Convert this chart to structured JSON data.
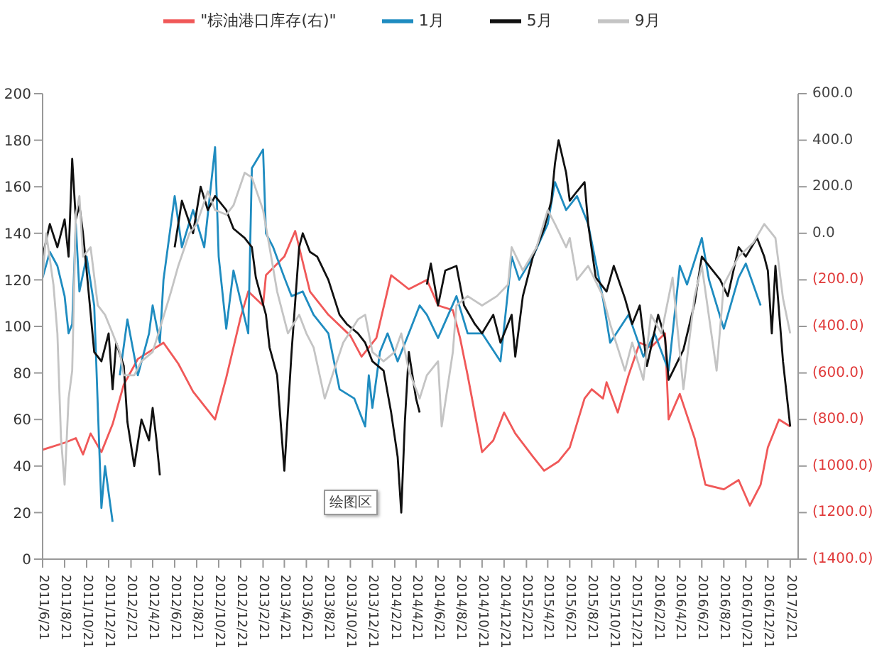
{
  "chart_data": {
    "type": "line",
    "legend": "top",
    "annotations": [
      "绘图区"
    ],
    "xlim": [
      "2011-06-21",
      "2017-03-15"
    ],
    "xticks": [
      {
        "value": "2011-06-21",
        "label": "2011/6/21"
      },
      {
        "value": "2011-08-21",
        "label": "2011/8/21"
      },
      {
        "value": "2011-10-21",
        "label": "2011/10/21"
      },
      {
        "value": "2011-12-21",
        "label": "2011/12/21"
      },
      {
        "value": "2012-02-21",
        "label": "2012/2/21"
      },
      {
        "value": "2012-04-21",
        "label": "2012/4/21"
      },
      {
        "value": "2012-06-21",
        "label": "2012/6/21"
      },
      {
        "value": "2012-08-21",
        "label": "2012/8/21"
      },
      {
        "value": "2012-10-21",
        "label": "2012/10/21"
      },
      {
        "value": "2012-12-21",
        "label": "2012/12/21"
      },
      {
        "value": "2013-02-21",
        "label": "2013/2/21"
      },
      {
        "value": "2013-04-21",
        "label": "2013/4/21"
      },
      {
        "value": "2013-06-21",
        "label": "2013/6/21"
      },
      {
        "value": "2013-08-21",
        "label": "2013/8/21"
      },
      {
        "value": "2013-10-21",
        "label": "2013/10/21"
      },
      {
        "value": "2013-12-21",
        "label": "2013/12/21"
      },
      {
        "value": "2014-02-21",
        "label": "2014/2/21"
      },
      {
        "value": "2014-04-21",
        "label": "2014/4/21"
      },
      {
        "value": "2014-06-21",
        "label": "2014/6/21"
      },
      {
        "value": "2014-08-21",
        "label": "2014/8/21"
      },
      {
        "value": "2014-10-21",
        "label": "2014/10/21"
      },
      {
        "value": "2014-12-21",
        "label": "2014/12/21"
      },
      {
        "value": "2015-02-21",
        "label": "2015/2/21"
      },
      {
        "value": "2015-04-21",
        "label": "2015/4/21"
      },
      {
        "value": "2015-06-21",
        "label": "2015/6/21"
      },
      {
        "value": "2015-08-21",
        "label": "2015/8/21"
      },
      {
        "value": "2015-10-21",
        "label": "2015/10/21"
      },
      {
        "value": "2015-12-21",
        "label": "2015/12/21"
      },
      {
        "value": "2016-02-21",
        "label": "2016/2/21"
      },
      {
        "value": "2016-04-21",
        "label": "2016/4/21"
      },
      {
        "value": "2016-06-21",
        "label": "2016/6/21"
      },
      {
        "value": "2016-08-21",
        "label": "2016/8/21"
      },
      {
        "value": "2016-10-21",
        "label": "2016/10/21"
      },
      {
        "value": "2016-12-21",
        "label": "2016/12/21"
      },
      {
        "value": "2017-02-21",
        "label": "2017/2/21"
      }
    ],
    "ylim": [
      0,
      200
    ],
    "yticks": [
      0,
      20,
      40,
      60,
      80,
      100,
      120,
      140,
      160,
      180,
      200
    ],
    "y2lim": [
      -1400,
      600
    ],
    "y2ticks": [
      {
        "value": -1400,
        "label": "(1400.0)"
      },
      {
        "value": -1200,
        "label": "(1200.0)"
      },
      {
        "value": -1000,
        "label": "(1000.0)"
      },
      {
        "value": -800,
        "label": "(800.0)"
      },
      {
        "value": -600,
        "label": "(600.0)"
      },
      {
        "value": -400,
        "label": "(400.0)"
      },
      {
        "value": -200,
        "label": "(200.0)"
      },
      {
        "value": 0,
        "label": "0.0"
      },
      {
        "value": 200,
        "label": "200.0"
      },
      {
        "value": 400,
        "label": "400.0"
      },
      {
        "value": 600,
        "label": "600.0"
      }
    ],
    "series": [
      {
        "name": "\"棕油港口库存(右)\"",
        "color": "#f05858",
        "axis": "y2",
        "x": [
          "2011-06-21",
          "2011-08-21",
          "2011-09-21",
          "2011-10-11",
          "2011-11-01",
          "2011-12-01",
          "2012-01-01",
          "2012-02-01",
          "2012-03-11",
          "2012-05-21",
          "2012-07-01",
          "2012-08-11",
          "2012-10-11",
          "2012-11-11",
          "2012-12-21",
          "2013-01-11",
          "2013-02-21",
          "2013-03-01",
          "2013-04-21",
          "2013-05-21",
          "2013-07-01",
          "2013-08-21",
          "2013-10-21",
          "2013-11-21",
          "2014-01-01",
          "2014-02-11",
          "2014-04-01",
          "2014-05-21",
          "2014-06-21",
          "2014-08-01",
          "2014-08-21",
          "2014-09-11",
          "2014-10-21",
          "2014-11-21",
          "2014-12-21",
          "2015-01-21",
          "2015-03-11",
          "2015-04-11",
          "2015-05-21",
          "2015-06-21",
          "2015-08-01",
          "2015-08-21",
          "2015-09-21",
          "2015-10-01",
          "2015-11-01",
          "2015-12-01",
          "2016-01-01",
          "2016-02-01",
          "2016-03-11",
          "2016-03-21",
          "2016-04-21",
          "2016-06-01",
          "2016-07-01",
          "2016-08-21",
          "2016-10-01",
          "2016-11-01",
          "2016-12-01",
          "2016-12-21",
          "2017-01-21",
          "2017-02-21"
        ],
        "values": [
          -930,
          -900,
          -880,
          -950,
          -860,
          -940,
          -820,
          -650,
          -540,
          -470,
          -560,
          -680,
          -800,
          -620,
          -360,
          -250,
          -310,
          -180,
          -100,
          10,
          -250,
          -350,
          -440,
          -530,
          -450,
          -180,
          -240,
          -200,
          -310,
          -330,
          -450,
          -610,
          -940,
          -890,
          -770,
          -860,
          -960,
          -1020,
          -980,
          -920,
          -710,
          -670,
          -710,
          -640,
          -770,
          -610,
          -470,
          -490,
          -430,
          -800,
          -690,
          -880,
          -1080,
          -1100,
          -1060,
          -1170,
          -1080,
          -920,
          -800,
          -830
        ]
      },
      {
        "name": "1月",
        "color": "#1f8cc0",
        "x": [
          "2011-06-21",
          "2011-07-11",
          "2011-08-01",
          "2011-08-21",
          "2011-09-01",
          "2011-09-11",
          "2011-09-21",
          "2011-10-01",
          "2011-10-21",
          "2011-11-11",
          "2011-12-01",
          "2011-12-11",
          "2012-01-01",
          "2012-01-11",
          "2012-01-21",
          "2012-02-11",
          "2012-03-11",
          "2012-04-11",
          "2012-04-21",
          "2012-05-11",
          "2012-05-21",
          "2012-06-21",
          "2012-07-11",
          "2012-08-11",
          "2012-09-11",
          "2012-10-11",
          "2012-10-21",
          "2012-11-11",
          "2012-12-01",
          "2013-01-11",
          "2013-01-21",
          "2013-02-21",
          "2013-03-01",
          "2013-03-21",
          "2013-04-21",
          "2013-05-11",
          "2013-06-11",
          "2013-07-11",
          "2013-08-21",
          "2013-09-21",
          "2013-11-01",
          "2013-12-01",
          "2013-12-11",
          "2013-12-21",
          "2014-01-11",
          "2014-02-01",
          "2014-03-01",
          "2014-04-01",
          "2014-05-01",
          "2014-05-21",
          "2014-06-21",
          "2014-08-11",
          "2014-09-11",
          "2014-10-21",
          "2014-12-11",
          "2015-01-11",
          "2015-02-01",
          "2015-03-11",
          "2015-04-21",
          "2015-05-11",
          "2015-06-11",
          "2015-07-11",
          "2015-08-11",
          "2015-09-21",
          "2015-10-11",
          "2015-12-01",
          "2016-01-11",
          "2016-02-11",
          "2016-03-21",
          "2016-04-21",
          "2016-05-11",
          "2016-06-21",
          "2016-07-11",
          "2016-08-21",
          "2016-10-01",
          "2016-10-21",
          "2016-12-01"
        ],
        "values": [
          121,
          132,
          126,
          113,
          97,
          101,
          144,
          115,
          130,
          109,
          22,
          40,
          16,
          null,
          79,
          103,
          79,
          97,
          109,
          93,
          120,
          156,
          134,
          150,
          134,
          177,
          130,
          99,
          124,
          97,
          168,
          176,
          140,
          134,
          121,
          113,
          115,
          105,
          97,
          73,
          69,
          57,
          79,
          65,
          89,
          97,
          85,
          97,
          109,
          105,
          95,
          113,
          97,
          97,
          85,
          130,
          120,
          130,
          144,
          162,
          150,
          156,
          144,
          112,
          93,
          105,
          87,
          97,
          81,
          126,
          118,
          138,
          120,
          99,
          121,
          127,
          109
        ]
      },
      {
        "name": "5月",
        "color": "#111111",
        "x": [
          "2011-06-21",
          "2011-07-11",
          "2011-08-01",
          "2011-08-21",
          "2011-09-01",
          "2011-09-11",
          "2011-09-21",
          "2011-10-01",
          "2011-10-11",
          "2011-10-21",
          "2011-11-11",
          "2011-12-01",
          "2011-12-21",
          "2012-01-01",
          "2012-01-11",
          "2012-02-01",
          "2012-02-11",
          "2012-03-01",
          "2012-03-21",
          "2012-04-11",
          "2012-04-21",
          "2012-05-01",
          "2012-05-11",
          "2012-05-21",
          "2012-06-21",
          "2012-07-11",
          "2012-08-11",
          "2012-09-01",
          "2012-09-21",
          "2012-10-11",
          "2012-11-11",
          "2012-12-01",
          "2013-01-01",
          "2013-01-21",
          "2013-02-01",
          "2013-03-01",
          "2013-03-11",
          "2013-04-01",
          "2013-04-21",
          "2013-05-11",
          "2013-06-01",
          "2013-06-11",
          "2013-07-01",
          "2013-07-21",
          "2013-08-21",
          "2013-09-21",
          "2013-10-11",
          "2013-11-11",
          "2013-12-01",
          "2013-12-21",
          "2014-01-21",
          "2014-02-11",
          "2014-03-01",
          "2014-03-11",
          "2014-03-21",
          "2014-04-01",
          "2014-04-21",
          "2014-05-01",
          "2014-05-11",
          "2014-05-21",
          "2014-06-01",
          "2014-06-21",
          "2014-07-11",
          "2014-08-11",
          "2014-09-01",
          "2014-10-01",
          "2014-10-21",
          "2014-11-21",
          "2014-12-11",
          "2015-01-11",
          "2015-01-21",
          "2015-02-11",
          "2015-03-11",
          "2015-04-11",
          "2015-05-01",
          "2015-05-11",
          "2015-05-21",
          "2015-06-11",
          "2015-06-21",
          "2015-07-11",
          "2015-08-01",
          "2015-08-11",
          "2015-09-01",
          "2015-10-01",
          "2015-10-21",
          "2015-11-21",
          "2015-12-11",
          "2016-01-01",
          "2016-01-21",
          "2016-02-21",
          "2016-03-11",
          "2016-03-21",
          "2016-05-01",
          "2016-06-01",
          "2016-06-21",
          "2016-07-11",
          "2016-08-11",
          "2016-09-01",
          "2016-10-01",
          "2016-10-21",
          "2016-11-21",
          "2016-12-11",
          "2016-12-21",
          "2017-01-01",
          "2017-01-11",
          "2017-02-01",
          "2017-02-21"
        ],
        "values": [
          130,
          144,
          134,
          146,
          130,
          172,
          146,
          152,
          140,
          124,
          89,
          85,
          97,
          73,
          93,
          83,
          59,
          40,
          60,
          51,
          65,
          52,
          36,
          null,
          134,
          154,
          140,
          160,
          150,
          156,
          150,
          142,
          138,
          134,
          121,
          105,
          91,
          79,
          38,
          89,
          134,
          140,
          132,
          130,
          120,
          105,
          101,
          97,
          93,
          85,
          81,
          63,
          44,
          20,
          59,
          89,
          69,
          63,
          null,
          118,
          127,
          109,
          124,
          126,
          109,
          101,
          97,
          105,
          93,
          105,
          87,
          113,
          130,
          142,
          154,
          170,
          180,
          166,
          154,
          158,
          162,
          144,
          121,
          115,
          126,
          112,
          101,
          109,
          83,
          105,
          95,
          77,
          90,
          110,
          130,
          126,
          120,
          113,
          134,
          130,
          138,
          130,
          124,
          97,
          126,
          85,
          57
        ]
      },
      {
        "name": "9月",
        "color": "#c4c4c4",
        "x": [
          "2011-06-21",
          "2011-07-01",
          "2011-07-21",
          "2011-08-01",
          "2011-08-11",
          "2011-08-21",
          "2011-09-01",
          "2011-09-11",
          "2011-09-21",
          "2011-10-01",
          "2011-10-11",
          "2011-11-01",
          "2011-11-21",
          "2011-12-11",
          "2012-01-01",
          "2012-01-21",
          "2012-02-01",
          "2012-03-01",
          "2012-03-21",
          "2012-04-21",
          "2012-05-11",
          "2012-06-11",
          "2012-07-01",
          "2012-08-01",
          "2012-08-21",
          "2012-09-21",
          "2012-10-11",
          "2012-11-11",
          "2012-12-01",
          "2013-01-01",
          "2013-01-21",
          "2013-02-21",
          "2013-03-11",
          "2013-04-01",
          "2013-05-01",
          "2013-06-01",
          "2013-06-21",
          "2013-07-11",
          "2013-08-11",
          "2013-09-01",
          "2013-10-01",
          "2013-11-11",
          "2013-12-01",
          "2013-12-21",
          "2014-01-21",
          "2014-02-21",
          "2014-03-11",
          "2014-04-01",
          "2014-05-01",
          "2014-05-21",
          "2014-06-21",
          "2014-07-01",
          "2014-08-01",
          "2014-08-11",
          "2014-09-11",
          "2014-10-21",
          "2014-12-01",
          "2015-01-01",
          "2015-01-11",
          "2015-02-11",
          "2015-03-21",
          "2015-04-21",
          "2015-05-11",
          "2015-06-11",
          "2015-06-21",
          "2015-07-11",
          "2015-08-11",
          "2015-09-21",
          "2015-10-11",
          "2015-11-21",
          "2015-12-11",
          "2016-01-11",
          "2016-02-01",
          "2016-03-01",
          "2016-04-01",
          "2016-05-01",
          "2016-06-01",
          "2016-06-21",
          "2016-08-01",
          "2016-08-21",
          "2016-10-01",
          "2016-11-11",
          "2016-12-11",
          "2017-01-11",
          "2017-02-01",
          "2017-02-21"
        ],
        "values": [
          121,
          140,
          118,
          97,
          52,
          32,
          69,
          81,
          148,
          156,
          130,
          134,
          109,
          105,
          97,
          89,
          79,
          79,
          85,
          89,
          99,
          115,
          126,
          140,
          144,
          158,
          150,
          148,
          152,
          166,
          164,
          150,
          134,
          115,
          97,
          105,
          97,
          91,
          69,
          79,
          93,
          103,
          105,
          89,
          85,
          89,
          97,
          81,
          69,
          79,
          85,
          57,
          89,
          109,
          113,
          109,
          113,
          118,
          134,
          124,
          134,
          150,
          144,
          134,
          138,
          120,
          126,
          113,
          101,
          81,
          93,
          77,
          105,
          97,
          121,
          73,
          113,
          126,
          81,
          118,
          130,
          136,
          144,
          138,
          112,
          97
        ]
      }
    ]
  }
}
